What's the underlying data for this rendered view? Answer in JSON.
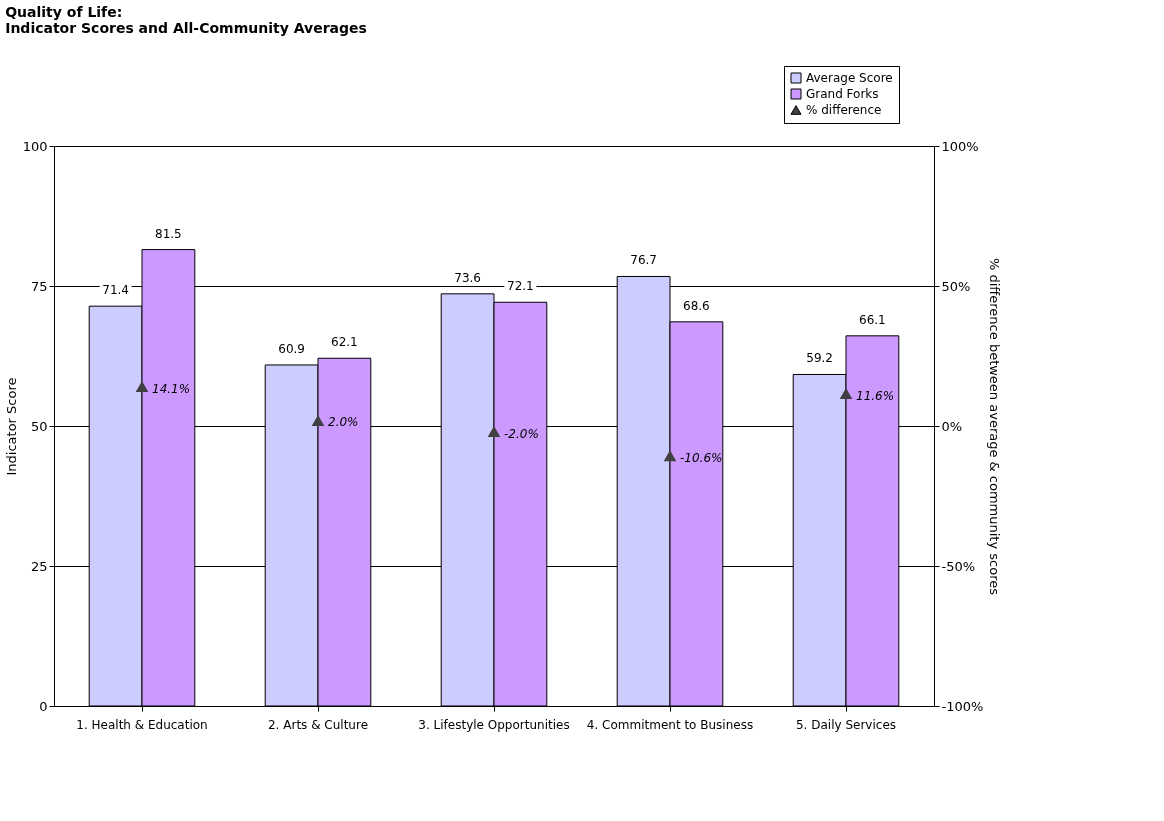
{
  "chart_data": {
    "type": "bar",
    "title": "Quality of Life:\nIndicator Scores and All-Community Averages",
    "ylabel": "Indicator Score",
    "y2label": "% difference between average & community scores",
    "categories": [
      "1. Health & Education",
      "2. Arts & Culture",
      "3. Lifestyle Opportunities",
      "4. Commitment to Business",
      "5. Daily Services"
    ],
    "series": [
      {
        "name": "Average Score",
        "type": "bar",
        "color": "#ccccff",
        "values": [
          71.4,
          60.9,
          73.6,
          76.7,
          59.2
        ],
        "value_labels": [
          "71.4",
          "60.9",
          "73.6",
          "76.7",
          "59.2"
        ]
      },
      {
        "name": "Grand Forks",
        "type": "bar",
        "color": "#cc99ff",
        "values": [
          81.5,
          62.1,
          72.1,
          68.6,
          66.1
        ],
        "value_labels": [
          "81.5",
          "62.1",
          "72.1",
          "68.6",
          "66.1"
        ]
      },
      {
        "name": "% difference",
        "type": "scatter",
        "axis": "y2",
        "marker": "triangle",
        "color": "#404040",
        "values": [
          14.1,
          2.0,
          -2.0,
          -10.6,
          11.6
        ],
        "value_labels": [
          "14.1%",
          "2.0%",
          "-2.0%",
          "-10.6%",
          "11.6%"
        ]
      }
    ],
    "ylim": [
      0,
      100
    ],
    "yticks": [
      0,
      25,
      50,
      75,
      100
    ],
    "y2lim": [
      -100,
      100
    ],
    "y2ticks": [
      {
        "value": -100,
        "label": "-100%"
      },
      {
        "value": -50,
        "label": "-50%"
      },
      {
        "value": 0,
        "label": "0%"
      },
      {
        "value": 50,
        "label": "50%"
      },
      {
        "value": 100,
        "label": "100%"
      }
    ],
    "grid": "y",
    "legend": "top right"
  }
}
